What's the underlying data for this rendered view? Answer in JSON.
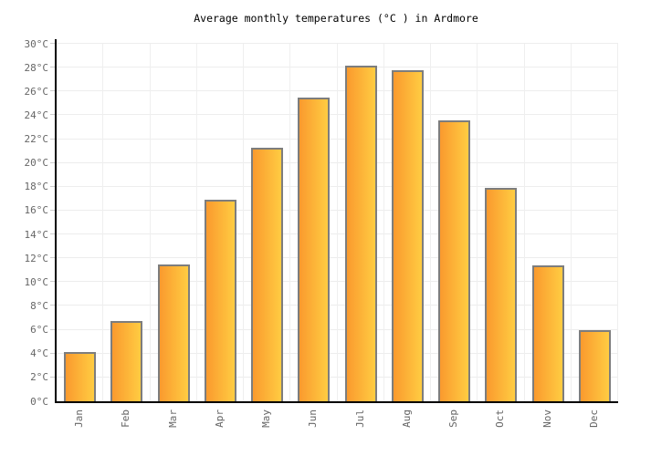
{
  "chart_data": {
    "type": "bar",
    "title": "Average monthly temperatures (°C ) in Ardmore",
    "categories": [
      "Jan",
      "Feb",
      "Mar",
      "Apr",
      "May",
      "Jun",
      "Jul",
      "Aug",
      "Sep",
      "Oct",
      "Nov",
      "Dec"
    ],
    "values": [
      4.1,
      6.7,
      11.5,
      16.9,
      21.3,
      25.5,
      28.2,
      27.8,
      23.6,
      17.9,
      11.4,
      6.0
    ],
    "xlabel": "",
    "ylabel": "",
    "ylim": [
      0,
      30
    ],
    "ytick_step": 2,
    "ytick_suffix": "°C",
    "ytick_labels": [
      "0°C",
      "2°C",
      "4°C",
      "6°C",
      "8°C",
      "10°C",
      "12°C",
      "14°C",
      "16°C",
      "18°C",
      "20°C",
      "22°C",
      "24°C",
      "26°C",
      "28°C",
      "30°C"
    ],
    "grid": true,
    "legend": false
  },
  "colors": {
    "background": "#ffffff",
    "bar_gradient_start": "#fa9a2e",
    "bar_gradient_end": "#ffcc42",
    "bar_border": "#7d7d7d",
    "axis": "#000000",
    "gridline": "#ededed",
    "tick": "#cccccc",
    "label_text": "#666666",
    "title_text": "#000000"
  }
}
